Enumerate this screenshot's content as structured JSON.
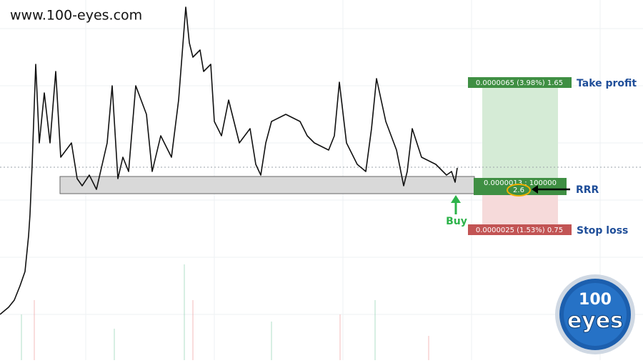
{
  "header": {
    "site": "www.100-eyes.com"
  },
  "position": {
    "take_profit": {
      "box": "0.0000065 (3.98%) 1.65",
      "label": "Take profit"
    },
    "entry": {
      "box": "0.0000013 : 100000",
      "ratio": "2.6",
      "label": "RRR"
    },
    "stop_loss": {
      "box": "0.0000025 (1.53%) 0.75",
      "label": "Stop loss"
    },
    "buy": "Buy"
  },
  "logo": {
    "top": "100",
    "bottom": "eyes"
  }
}
